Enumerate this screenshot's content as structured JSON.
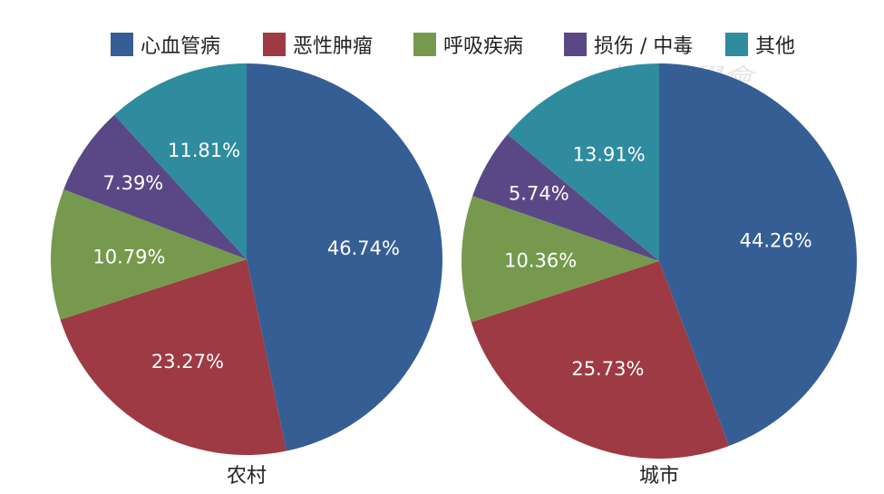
{
  "chart_data": [
    {
      "type": "pie",
      "title": "农村",
      "categories": [
        "心血管病",
        "恶性肿瘤",
        "呼吸疾病",
        "损伤 / 中毒",
        "其他"
      ],
      "values": [
        46.74,
        23.27,
        10.79,
        7.39,
        11.81
      ],
      "labels": [
        "46.74%",
        "23.27%",
        "10.79%",
        "7.39%",
        "11.81%"
      ]
    },
    {
      "type": "pie",
      "title": "城市",
      "categories": [
        "心血管病",
        "恶性肿瘤",
        "呼吸疾病",
        "损伤 / 中毒",
        "其他"
      ],
      "values": [
        44.26,
        25.73,
        10.36,
        5.74,
        13.91
      ],
      "labels": [
        "44.26%",
        "25.73%",
        "10.36%",
        "5.74%",
        "13.91%"
      ]
    }
  ],
  "legend": {
    "position": "top",
    "items": [
      "心血管病",
      "恶性肿瘤",
      "呼吸疾病",
      "损伤 / 中毒",
      "其他"
    ]
  },
  "colors": [
    "#355f94",
    "#9e3a44",
    "#76994e",
    "#5a4886",
    "#2f8c9e"
  ],
  "watermark": "中華醫學會"
}
